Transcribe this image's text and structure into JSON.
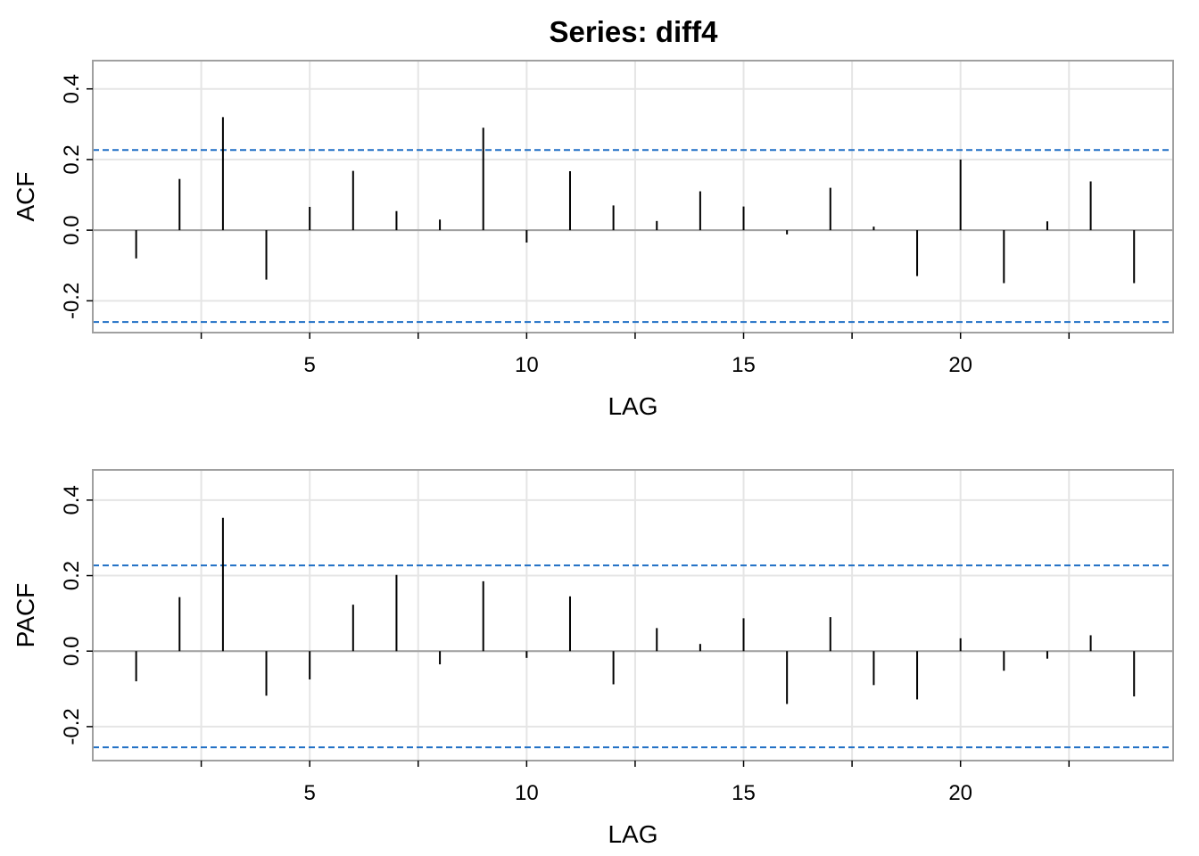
{
  "title": "Series:  diff4",
  "colors": {
    "background": "#ffffff",
    "grid": "#e5e5e5",
    "frame": "#a0a0a0",
    "zero_line": "#a0a0a0",
    "bars": "#000000",
    "ci_line": "#1f6fc5"
  },
  "chart_data": [
    {
      "type": "bar",
      "name": "acf-panel",
      "title": "Series:  diff4",
      "xlabel": "LAG",
      "ylabel": "ACF",
      "xlim": [
        0,
        24.9
      ],
      "ylim": [
        -0.29,
        0.48
      ],
      "xticks": [
        5,
        10,
        15,
        20
      ],
      "xticks_minor": [
        2.5,
        7.5,
        12.5,
        17.5,
        22.5
      ],
      "yticks": [
        -0.2,
        0.0,
        0.2,
        0.4
      ],
      "ytick_labels": [
        "-0.2",
        "0.0",
        "0.2",
        "0.4"
      ],
      "grid": true,
      "conf_limits": [
        0.227,
        -0.26
      ],
      "lags": [
        1,
        2,
        3,
        4,
        5,
        6,
        7,
        8,
        9,
        10,
        11,
        12,
        13,
        14,
        15,
        16,
        17,
        18,
        19,
        20,
        21,
        22,
        23,
        24
      ],
      "values": [
        -0.08,
        0.145,
        0.32,
        -0.14,
        0.066,
        0.168,
        0.054,
        0.03,
        0.29,
        -0.035,
        0.167,
        0.07,
        0.026,
        0.11,
        0.067,
        -0.012,
        0.12,
        0.01,
        -0.13,
        0.2,
        -0.15,
        0.025,
        0.138,
        -0.15
      ]
    },
    {
      "type": "bar",
      "name": "pacf-panel",
      "xlabel": "LAG",
      "ylabel": "PACF",
      "xlim": [
        0,
        24.9
      ],
      "ylim": [
        -0.29,
        0.48
      ],
      "xticks": [
        5,
        10,
        15,
        20
      ],
      "xticks_minor": [
        2.5,
        7.5,
        12.5,
        17.5,
        22.5
      ],
      "yticks": [
        -0.2,
        0.0,
        0.2,
        0.4
      ],
      "ytick_labels": [
        "-0.2",
        "0.0",
        "0.2",
        "0.4"
      ],
      "grid": true,
      "conf_limits": [
        0.227,
        -0.255
      ],
      "lags": [
        1,
        2,
        3,
        4,
        5,
        6,
        7,
        8,
        9,
        10,
        11,
        12,
        13,
        14,
        15,
        16,
        17,
        18,
        19,
        20,
        21,
        22,
        23,
        24
      ],
      "values": [
        -0.08,
        0.143,
        0.353,
        -0.118,
        -0.075,
        0.123,
        0.202,
        -0.035,
        0.185,
        -0.018,
        0.145,
        -0.088,
        0.061,
        0.019,
        0.087,
        -0.14,
        0.09,
        -0.09,
        -0.128,
        0.034,
        -0.052,
        -0.02,
        0.042,
        -0.12
      ]
    }
  ]
}
